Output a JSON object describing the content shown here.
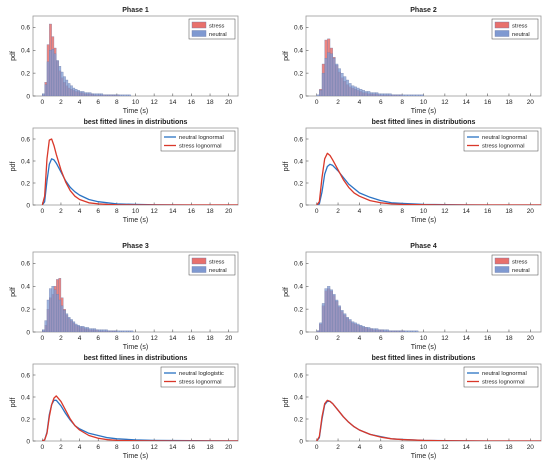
{
  "colors": {
    "stress": "#e8706c",
    "neutral": "#7f99d1",
    "stress_line": "#d9382a",
    "neutral_line": "#2a73c4",
    "edge": "#6f7ca8"
  },
  "chart_data": [
    {
      "type": "bar",
      "title": "Phase 1",
      "xlabel": "Time (s)",
      "ylabel": "pdf",
      "xlim": [
        -1,
        21
      ],
      "ylim": [
        0,
        0.7
      ],
      "xticks": [
        "0",
        "2",
        "4",
        "6",
        "8",
        "10",
        "12",
        "14",
        "16",
        "18",
        "20"
      ],
      "yticks": [
        "0",
        "0.2",
        "0.4",
        "0.6"
      ],
      "legend": "top-right",
      "bin_width": 0.25,
      "x": [
        0.125,
        0.375,
        0.625,
        0.875,
        1.125,
        1.375,
        1.625,
        1.875,
        2.125,
        2.375,
        2.625,
        2.875,
        3.125,
        3.375,
        3.625,
        3.875,
        4.125,
        4.375,
        4.625,
        4.875,
        5.125,
        5.375,
        5.625,
        5.875,
        6.125,
        6.375,
        6.625,
        6.875,
        7.125,
        7.375,
        7.625,
        7.875,
        8.125,
        8.375,
        8.625,
        8.875,
        9.125,
        9.375,
        9.625,
        9.875
      ],
      "series": [
        {
          "name": "stress",
          "values": [
            0.01,
            0.12,
            0.45,
            0.63,
            0.52,
            0.42,
            0.31,
            0.22,
            0.16,
            0.12,
            0.09,
            0.07,
            0.06,
            0.05,
            0.04,
            0.04,
            0.03,
            0.03,
            0.02,
            0.02,
            0.02,
            0.02,
            0.01,
            0.01,
            0.01,
            0.01,
            0.01,
            0.01,
            0.01,
            0.01,
            0.01,
            0.01,
            0.01,
            0.0,
            0.0,
            0.0,
            0.0,
            0.0,
            0.0,
            0.0
          ]
        },
        {
          "name": "neutral",
          "values": [
            0.02,
            0.1,
            0.3,
            0.4,
            0.41,
            0.37,
            0.31,
            0.26,
            0.21,
            0.17,
            0.14,
            0.11,
            0.09,
            0.07,
            0.06,
            0.05,
            0.04,
            0.04,
            0.03,
            0.03,
            0.03,
            0.02,
            0.02,
            0.02,
            0.02,
            0.02,
            0.01,
            0.01,
            0.01,
            0.01,
            0.01,
            0.01,
            0.01,
            0.01,
            0.01,
            0.01,
            0.01,
            0.01,
            0.0,
            0.0
          ]
        }
      ]
    },
    {
      "type": "bar",
      "title": "Phase 2",
      "xlabel": "Time (s)",
      "ylabel": "pdf",
      "xlim": [
        -1,
        21
      ],
      "ylim": [
        0,
        0.7
      ],
      "xticks": [
        "0",
        "2",
        "4",
        "6",
        "8",
        "10",
        "12",
        "14",
        "16",
        "18",
        "20"
      ],
      "yticks": [
        "0",
        "0.2",
        "0.4",
        "0.6"
      ],
      "legend": "top-right",
      "bin_width": 0.25,
      "x": [
        0.125,
        0.375,
        0.625,
        0.875,
        1.125,
        1.375,
        1.625,
        1.875,
        2.125,
        2.375,
        2.625,
        2.875,
        3.125,
        3.375,
        3.625,
        3.875,
        4.125,
        4.375,
        4.625,
        4.875,
        5.125,
        5.375,
        5.625,
        5.875,
        6.125,
        6.375,
        6.625,
        6.875,
        7.125,
        7.375,
        7.625,
        7.875,
        8.125,
        8.375,
        8.625,
        8.875,
        9.125,
        9.375,
        9.625,
        9.875
      ],
      "series": [
        {
          "name": "stress",
          "values": [
            0.0,
            0.06,
            0.28,
            0.49,
            0.5,
            0.42,
            0.34,
            0.27,
            0.21,
            0.16,
            0.13,
            0.1,
            0.08,
            0.07,
            0.06,
            0.05,
            0.04,
            0.03,
            0.03,
            0.02,
            0.02,
            0.02,
            0.02,
            0.01,
            0.01,
            0.01,
            0.01,
            0.01,
            0.01,
            0.01,
            0.01,
            0.01,
            0.0,
            0.0,
            0.0,
            0.0,
            0.0,
            0.0,
            0.0,
            0.0
          ]
        },
        {
          "name": "neutral",
          "values": [
            0.01,
            0.05,
            0.2,
            0.33,
            0.38,
            0.37,
            0.33,
            0.28,
            0.24,
            0.2,
            0.17,
            0.14,
            0.11,
            0.09,
            0.08,
            0.07,
            0.06,
            0.05,
            0.04,
            0.04,
            0.03,
            0.03,
            0.03,
            0.02,
            0.02,
            0.02,
            0.02,
            0.02,
            0.01,
            0.01,
            0.01,
            0.01,
            0.01,
            0.01,
            0.01,
            0.01,
            0.01,
            0.01,
            0.01,
            0.01
          ]
        }
      ]
    },
    {
      "type": "line",
      "title": "best fitted lines in distributions",
      "xlabel": "Time (s)",
      "ylabel": "pdf",
      "xlim": [
        -1,
        21
      ],
      "ylim": [
        0,
        0.7
      ],
      "xticks": [
        "0",
        "2",
        "4",
        "6",
        "8",
        "10",
        "12",
        "14",
        "16",
        "18",
        "20"
      ],
      "yticks": [
        "0",
        "0.2",
        "0.4",
        "0.6"
      ],
      "legend": "top-right",
      "x": [
        0,
        0.25,
        0.5,
        0.75,
        1,
        1.25,
        1.5,
        2,
        2.5,
        3,
        3.5,
        4,
        5,
        6,
        7,
        8,
        10,
        12,
        14,
        16,
        18,
        20,
        21
      ],
      "series": [
        {
          "name": "neutral lognormal",
          "color": "#2a73c4",
          "values": [
            0,
            0.03,
            0.22,
            0.37,
            0.42,
            0.41,
            0.38,
            0.3,
            0.22,
            0.16,
            0.12,
            0.09,
            0.05,
            0.03,
            0.02,
            0.01,
            0.005,
            0.002,
            0.001,
            0,
            0,
            0,
            0
          ]
        },
        {
          "name": "stress lognormal",
          "color": "#d9382a",
          "values": [
            0,
            0.08,
            0.42,
            0.59,
            0.6,
            0.54,
            0.46,
            0.32,
            0.21,
            0.13,
            0.08,
            0.05,
            0.02,
            0.01,
            0.005,
            0.002,
            0,
            0,
            0,
            0,
            0,
            0,
            0
          ]
        }
      ]
    },
    {
      "type": "line",
      "title": "best fitted lines in distributions",
      "xlabel": "Time (s)",
      "ylabel": "pdf",
      "xlim": [
        -1,
        21
      ],
      "ylim": [
        0,
        0.7
      ],
      "xticks": [
        "0",
        "2",
        "4",
        "6",
        "8",
        "10",
        "12",
        "14",
        "16",
        "18",
        "20"
      ],
      "yticks": [
        "0",
        "0.2",
        "0.4",
        "0.6"
      ],
      "legend": "top-right",
      "x": [
        0,
        0.25,
        0.5,
        0.75,
        1,
        1.25,
        1.5,
        2,
        2.5,
        3,
        3.5,
        4,
        5,
        6,
        7,
        8,
        10,
        12,
        14,
        16,
        18,
        20,
        21
      ],
      "series": [
        {
          "name": "neutral lognormal",
          "color": "#2a73c4",
          "values": [
            0,
            0.01,
            0.12,
            0.28,
            0.35,
            0.37,
            0.36,
            0.31,
            0.25,
            0.19,
            0.15,
            0.11,
            0.07,
            0.04,
            0.02,
            0.015,
            0.006,
            0.003,
            0.001,
            0,
            0,
            0,
            0
          ]
        },
        {
          "name": "stress lognormal",
          "color": "#d9382a",
          "values": [
            0,
            0.03,
            0.25,
            0.42,
            0.47,
            0.45,
            0.41,
            0.32,
            0.23,
            0.16,
            0.11,
            0.08,
            0.04,
            0.02,
            0.01,
            0.005,
            0.002,
            0,
            0,
            0,
            0,
            0,
            0
          ]
        }
      ]
    },
    {
      "type": "bar",
      "title": "Phase 3",
      "xlabel": "Time (s)",
      "ylabel": "pdf",
      "xlim": [
        -1,
        21
      ],
      "ylim": [
        0,
        0.7
      ],
      "xticks": [
        "0",
        "2",
        "4",
        "6",
        "8",
        "10",
        "12",
        "14",
        "16",
        "18",
        "20"
      ],
      "yticks": [
        "0",
        "0.2",
        "0.4",
        "0.6"
      ],
      "legend": "top-right",
      "bin_width": 0.25,
      "x": [
        0.125,
        0.375,
        0.625,
        0.875,
        1.125,
        1.375,
        1.625,
        1.875,
        2.125,
        2.375,
        2.625,
        2.875,
        3.125,
        3.375,
        3.625,
        3.875,
        4.125,
        4.375,
        4.625,
        4.875,
        5.125,
        5.375,
        5.625,
        5.875,
        6.125,
        6.375,
        6.625,
        6.875,
        7.125,
        7.375,
        7.625,
        7.875,
        8.125,
        8.375,
        8.625,
        8.875,
        9.125,
        9.375,
        9.625,
        9.875
      ],
      "series": [
        {
          "name": "stress",
          "values": [
            0.01,
            0.06,
            0.2,
            0.3,
            0.33,
            0.4,
            0.46,
            0.47,
            0.3,
            0.2,
            0.15,
            0.12,
            0.1,
            0.08,
            0.06,
            0.05,
            0.04,
            0.04,
            0.03,
            0.03,
            0.02,
            0.02,
            0.02,
            0.02,
            0.01,
            0.01,
            0.01,
            0.01,
            0.01,
            0.01,
            0.01,
            0.01,
            0.0,
            0.0,
            0.0,
            0.0,
            0.0,
            0.0,
            0.0,
            0.0
          ]
        },
        {
          "name": "neutral",
          "values": [
            0.02,
            0.1,
            0.28,
            0.38,
            0.4,
            0.37,
            0.33,
            0.28,
            0.23,
            0.19,
            0.16,
            0.13,
            0.11,
            0.09,
            0.07,
            0.06,
            0.05,
            0.05,
            0.04,
            0.04,
            0.03,
            0.03,
            0.03,
            0.02,
            0.02,
            0.02,
            0.02,
            0.02,
            0.01,
            0.01,
            0.01,
            0.01,
            0.01,
            0.01,
            0.01,
            0.01,
            0.01,
            0.01,
            0.01,
            0.0
          ]
        }
      ]
    },
    {
      "type": "bar",
      "title": "Phase 4",
      "xlabel": "Time (s)",
      "ylabel": "pdf",
      "xlim": [
        -1,
        21
      ],
      "ylim": [
        0,
        0.7
      ],
      "xticks": [
        "0",
        "2",
        "4",
        "6",
        "8",
        "10",
        "12",
        "14",
        "16",
        "18",
        "20"
      ],
      "yticks": [
        "0",
        "0.2",
        "0.4",
        "0.6"
      ],
      "legend": "top-right",
      "bin_width": 0.25,
      "x": [
        0.125,
        0.375,
        0.625,
        0.875,
        1.125,
        1.375,
        1.625,
        1.875,
        2.125,
        2.375,
        2.625,
        2.875,
        3.125,
        3.375,
        3.625,
        3.875,
        4.125,
        4.375,
        4.625,
        4.875,
        5.125,
        5.375,
        5.625,
        5.875,
        6.125,
        6.375,
        6.625,
        6.875,
        7.125,
        7.375,
        7.625,
        7.875,
        8.125,
        8.375,
        8.625,
        8.875,
        9.125,
        9.375,
        9.625,
        9.875
      ],
      "series": [
        {
          "name": "stress",
          "values": [
            0.01,
            0.07,
            0.23,
            0.36,
            0.38,
            0.36,
            0.32,
            0.27,
            0.22,
            0.18,
            0.15,
            0.12,
            0.1,
            0.08,
            0.07,
            0.06,
            0.05,
            0.04,
            0.04,
            0.03,
            0.03,
            0.02,
            0.02,
            0.02,
            0.02,
            0.01,
            0.01,
            0.01,
            0.01,
            0.01,
            0.01,
            0.01,
            0.01,
            0.0,
            0.0,
            0.0,
            0.0,
            0.0,
            0.0,
            0.0
          ]
        },
        {
          "name": "neutral",
          "values": [
            0.01,
            0.08,
            0.25,
            0.38,
            0.4,
            0.37,
            0.33,
            0.28,
            0.23,
            0.19,
            0.16,
            0.13,
            0.11,
            0.09,
            0.08,
            0.07,
            0.06,
            0.05,
            0.04,
            0.04,
            0.03,
            0.03,
            0.03,
            0.02,
            0.02,
            0.02,
            0.02,
            0.01,
            0.01,
            0.01,
            0.01,
            0.01,
            0.01,
            0.01,
            0.01,
            0.01,
            0.01,
            0.01,
            0.0,
            0.0
          ]
        }
      ]
    },
    {
      "type": "line",
      "title": "best fitted lines in distributions",
      "xlabel": "Time (s)",
      "ylabel": "pdf",
      "xlim": [
        -1,
        21
      ],
      "ylim": [
        0,
        0.7
      ],
      "xticks": [
        "0",
        "2",
        "4",
        "6",
        "8",
        "10",
        "12",
        "14",
        "16",
        "18",
        "20"
      ],
      "yticks": [
        "0",
        "0.2",
        "0.4",
        "0.6"
      ],
      "legend": "top-right",
      "x": [
        0,
        0.25,
        0.5,
        0.75,
        1,
        1.25,
        1.5,
        2,
        2.5,
        3,
        3.5,
        4,
        5,
        6,
        7,
        8,
        10,
        12,
        14,
        16,
        18,
        20,
        21
      ],
      "series": [
        {
          "name": "neutral loglogistic",
          "color": "#2a73c4",
          "values": [
            0,
            0.01,
            0.08,
            0.24,
            0.33,
            0.37,
            0.37,
            0.32,
            0.25,
            0.19,
            0.14,
            0.11,
            0.07,
            0.05,
            0.03,
            0.02,
            0.01,
            0.006,
            0.004,
            0.003,
            0.002,
            0.001,
            0.001
          ]
        },
        {
          "name": "stress lognormal",
          "color": "#d9382a",
          "values": [
            0,
            0.01,
            0.07,
            0.22,
            0.33,
            0.39,
            0.41,
            0.36,
            0.28,
            0.2,
            0.14,
            0.1,
            0.05,
            0.025,
            0.012,
            0.006,
            0.002,
            0.001,
            0,
            0,
            0,
            0,
            0
          ]
        }
      ]
    },
    {
      "type": "line",
      "title": "best fitted lines in distributions",
      "xlabel": "Time (s)",
      "ylabel": "pdf",
      "xlim": [
        -1,
        21
      ],
      "ylim": [
        0,
        0.7
      ],
      "xticks": [
        "0",
        "2",
        "4",
        "6",
        "8",
        "10",
        "12",
        "14",
        "16",
        "18",
        "20"
      ],
      "yticks": [
        "0",
        "0.2",
        "0.4",
        "0.6"
      ],
      "legend": "top-right",
      "x": [
        0,
        0.25,
        0.5,
        0.75,
        1,
        1.25,
        1.5,
        2,
        2.5,
        3,
        3.5,
        4,
        5,
        6,
        7,
        8,
        10,
        12,
        14,
        16,
        18,
        20,
        21
      ],
      "series": [
        {
          "name": "neutral lognormal",
          "color": "#2a73c4",
          "values": [
            0,
            0.03,
            0.2,
            0.33,
            0.36,
            0.36,
            0.34,
            0.28,
            0.22,
            0.17,
            0.13,
            0.1,
            0.06,
            0.04,
            0.02,
            0.015,
            0.006,
            0.003,
            0.001,
            0,
            0,
            0,
            0
          ]
        },
        {
          "name": "stress lognormal",
          "color": "#d9382a",
          "values": [
            0,
            0.04,
            0.22,
            0.34,
            0.37,
            0.36,
            0.34,
            0.28,
            0.22,
            0.17,
            0.13,
            0.1,
            0.06,
            0.035,
            0.02,
            0.013,
            0.005,
            0.002,
            0.001,
            0,
            0,
            0,
            0
          ]
        }
      ]
    }
  ]
}
